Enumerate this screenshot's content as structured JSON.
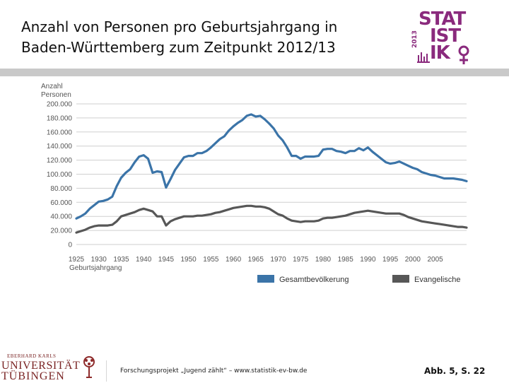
{
  "slide": {
    "title_line1": "Anzahl von Personen pro Geburtsjahrgang in",
    "title_line2": "Baden-Württemberg zum Zeitpunkt 2012/13"
  },
  "logo": {
    "line1": "STAT",
    "line2": "IST",
    "line3": "IK",
    "year": "2013",
    "color": "#8a2a7d"
  },
  "footer": {
    "uni_small": "EBERHARD KARLS",
    "uni_name": "UNIVERSITÄT",
    "uni_city": "TÜBINGEN",
    "project_text": "Forschungsprojekt „Jugend zählt“ – www.statistik-ev-bw.de",
    "reference": "Abb. 5, S. 22"
  },
  "chart_data": {
    "type": "line",
    "ylabel_line1": "Anzahl",
    "ylabel_line2": "Personen",
    "xlabel": "Geburtsjahrgang",
    "xlim": [
      1925,
      2012
    ],
    "ylim": [
      0,
      200000
    ],
    "y_ticks": [
      "0",
      "20.000",
      "40.000",
      "60.000",
      "80.000",
      "100.000",
      "120.000",
      "140.000",
      "160.000",
      "180.000",
      "200.000"
    ],
    "x_ticks": [
      "1925",
      "1930",
      "1935",
      "1940",
      "1945",
      "1950",
      "1955",
      "1960",
      "1965",
      "1970",
      "1975",
      "1980",
      "1985",
      "1990",
      "1995",
      "2000",
      "2005"
    ],
    "grid": true,
    "legend_position": "bottom",
    "x": [
      1925,
      1926,
      1927,
      1928,
      1929,
      1930,
      1931,
      1932,
      1933,
      1934,
      1935,
      1936,
      1937,
      1938,
      1939,
      1940,
      1941,
      1942,
      1943,
      1944,
      1945,
      1946,
      1947,
      1948,
      1949,
      1950,
      1951,
      1952,
      1953,
      1954,
      1955,
      1956,
      1957,
      1958,
      1959,
      1960,
      1961,
      1962,
      1963,
      1964,
      1965,
      1966,
      1967,
      1968,
      1969,
      1970,
      1971,
      1972,
      1973,
      1974,
      1975,
      1976,
      1977,
      1978,
      1979,
      1980,
      1981,
      1982,
      1983,
      1984,
      1985,
      1986,
      1987,
      1988,
      1989,
      1990,
      1991,
      1992,
      1993,
      1994,
      1995,
      1996,
      1997,
      1998,
      1999,
      2000,
      2001,
      2002,
      2003,
      2004,
      2005,
      2006,
      2007,
      2008,
      2009,
      2010,
      2011,
      2012
    ],
    "series": [
      {
        "name": "Gesamtbevölkerung",
        "color": "#3b74a8",
        "values": [
          37000,
          40000,
          44000,
          51000,
          56000,
          61000,
          62000,
          64000,
          68000,
          83000,
          95000,
          102000,
          107000,
          117000,
          125000,
          127000,
          122000,
          102000,
          104000,
          103000,
          81000,
          93000,
          106000,
          115000,
          124000,
          126000,
          126000,
          130000,
          130000,
          133000,
          138000,
          144000,
          150000,
          154000,
          162000,
          168000,
          173000,
          177000,
          183000,
          185000,
          182000,
          183000,
          178000,
          172000,
          165000,
          155000,
          148000,
          138000,
          126000,
          126000,
          122000,
          125000,
          125000,
          125000,
          126000,
          135000,
          136000,
          136000,
          133000,
          132000,
          130000,
          133000,
          133000,
          137000,
          134000,
          138000,
          132000,
          127000,
          122000,
          117000,
          115000,
          116000,
          118000,
          115000,
          112000,
          109000,
          107000,
          103000,
          101000,
          99000,
          98000,
          96000,
          94000,
          94000,
          94000,
          93000,
          92000,
          90000
        ]
      },
      {
        "name": "Evangelische",
        "color": "#575757",
        "values": [
          17000,
          19000,
          21000,
          24000,
          26000,
          27000,
          27000,
          27000,
          28000,
          33000,
          40000,
          42000,
          44000,
          46000,
          49000,
          51000,
          49000,
          47000,
          40000,
          40000,
          27000,
          33000,
          36000,
          38000,
          40000,
          40000,
          40000,
          41000,
          41000,
          42000,
          43000,
          45000,
          46000,
          48000,
          50000,
          52000,
          53000,
          54000,
          55000,
          55000,
          54000,
          54000,
          53000,
          51000,
          47000,
          43000,
          41000,
          37000,
          34000,
          33000,
          32000,
          33000,
          33000,
          33000,
          34000,
          37000,
          38000,
          38000,
          39000,
          40000,
          41000,
          43000,
          45000,
          46000,
          47000,
          48000,
          47000,
          46000,
          45000,
          44000,
          44000,
          44000,
          44000,
          42000,
          39000,
          37000,
          35000,
          33000,
          32000,
          31000,
          30000,
          29000,
          28000,
          27000,
          26000,
          25000,
          25000,
          24000
        ]
      }
    ]
  }
}
